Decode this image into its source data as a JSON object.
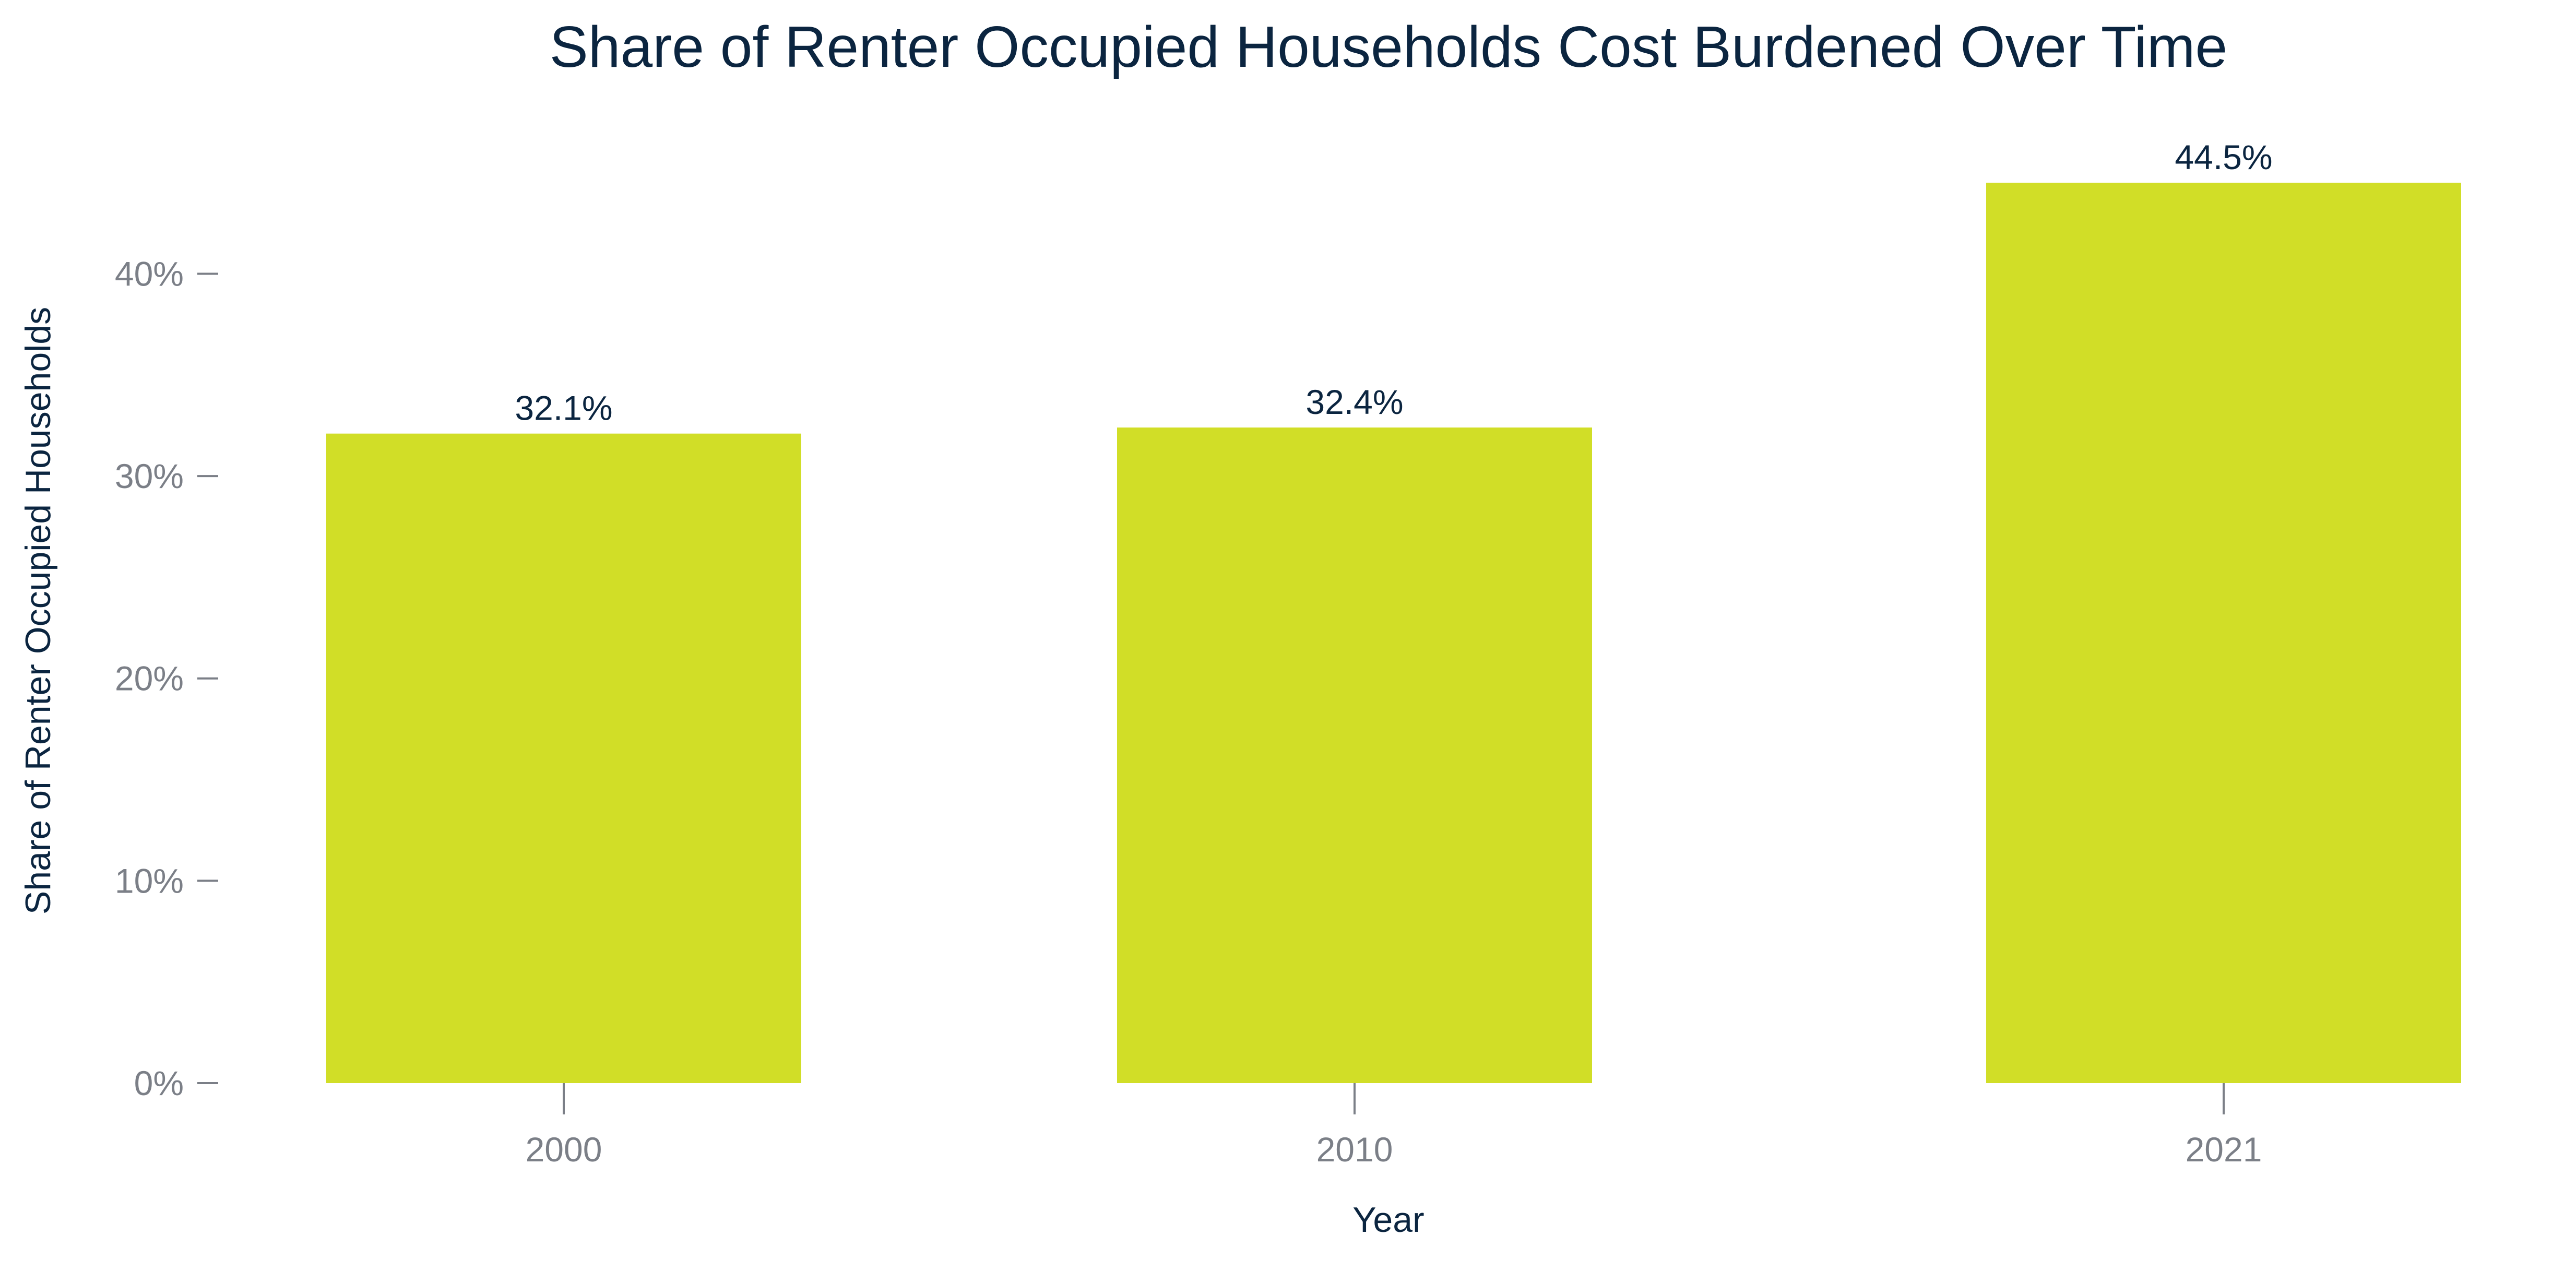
{
  "chart_data": {
    "type": "bar",
    "title": "Share of Renter Occupied Households Cost Burdened Over Time",
    "xlabel": "Year",
    "ylabel": "Share of Renter Occupied Households",
    "categories": [
      "2000",
      "2010",
      "2021"
    ],
    "values": [
      32.1,
      32.4,
      44.5
    ],
    "data_labels": [
      "32.1%",
      "32.4%",
      "44.5%"
    ],
    "ylim": [
      0,
      44.5
    ],
    "y_ticks": [
      0,
      10,
      20,
      30,
      40
    ],
    "y_tick_labels": [
      "0%",
      "10%",
      "20%",
      "30%",
      "40%"
    ],
    "grid": false,
    "colors": {
      "bar": "#d1de27",
      "title": "#0b2540",
      "axis_title": "#0b2540",
      "data_label": "#0b2540",
      "tick_label": "#7b7f87",
      "tick_mark": "#7b7f87"
    }
  }
}
